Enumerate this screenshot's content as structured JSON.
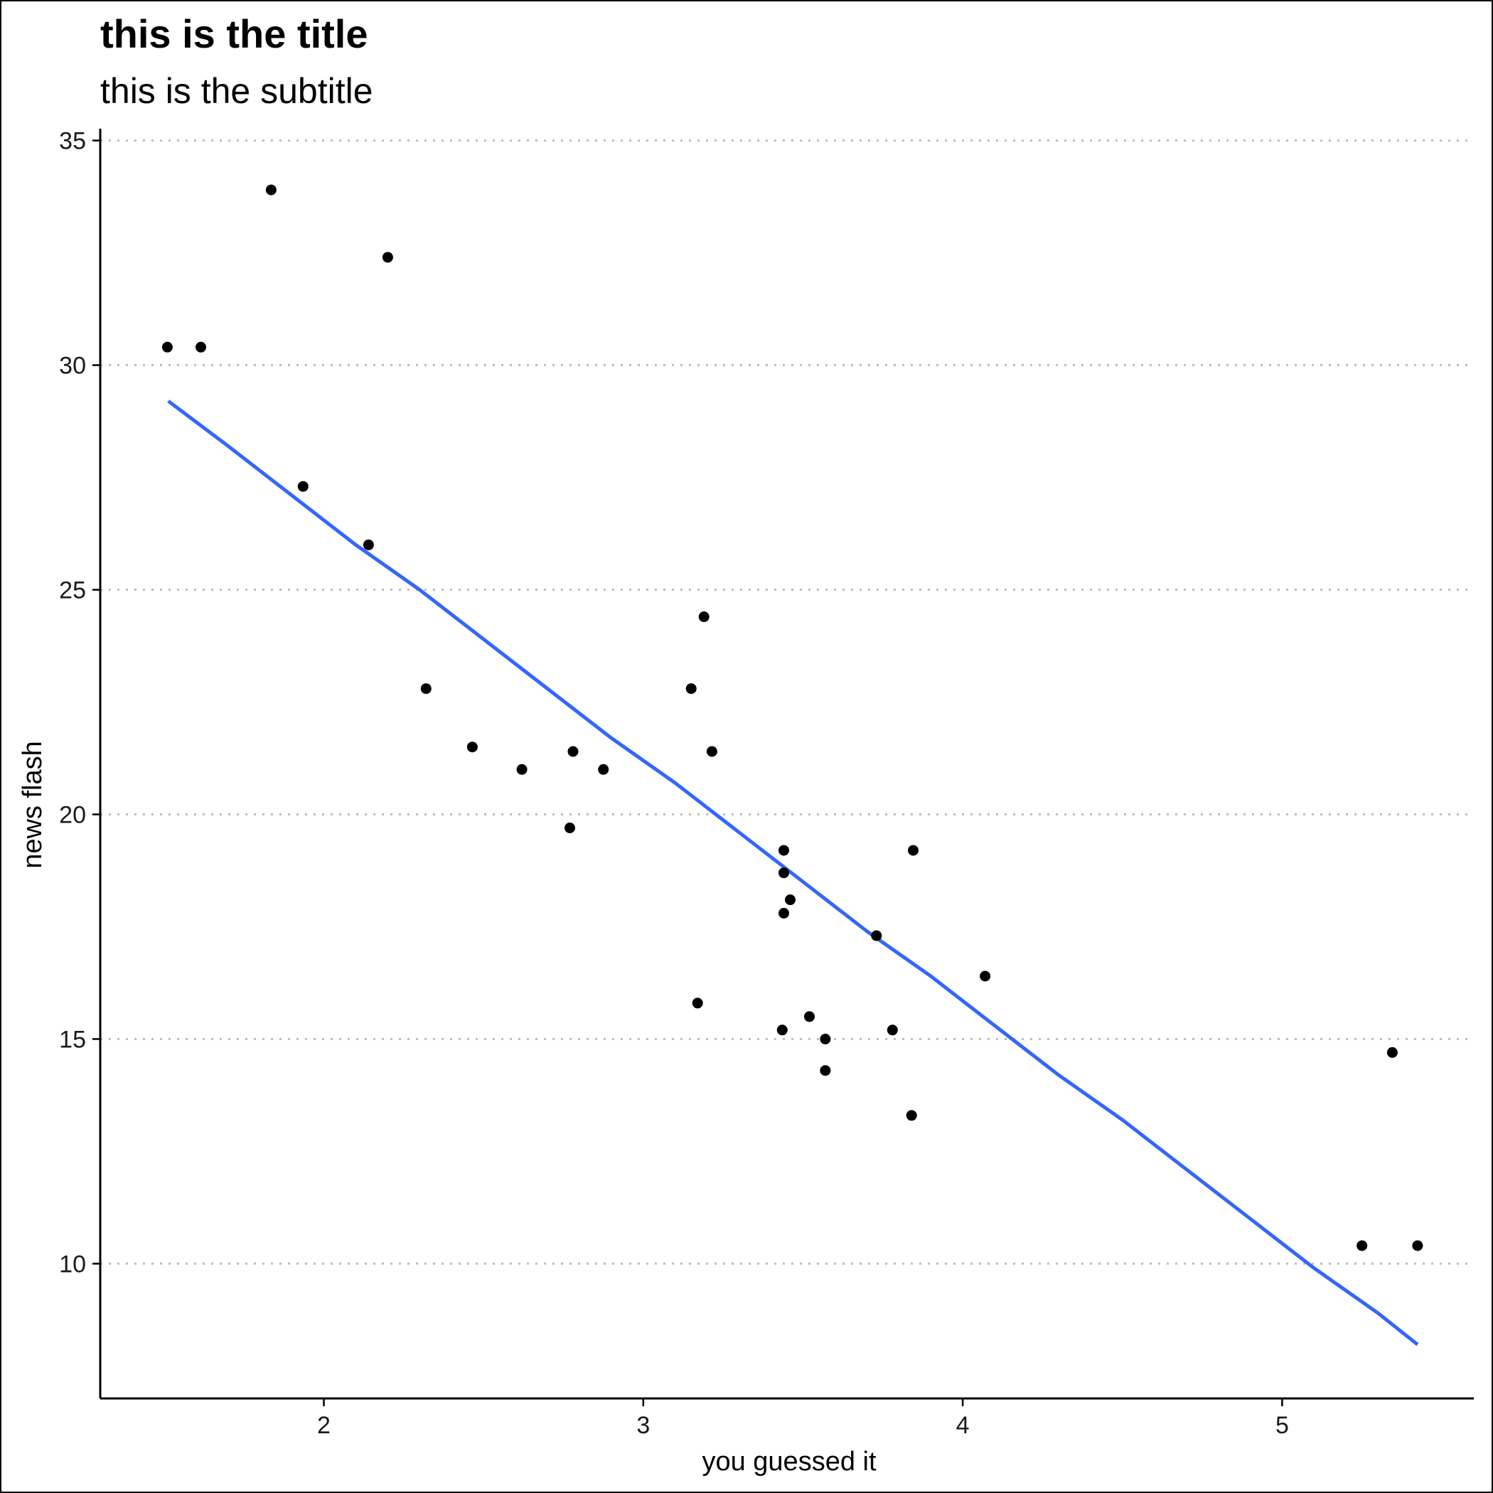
{
  "chart_data": {
    "type": "scatter",
    "title": "this is the title",
    "subtitle": "this is the subtitle",
    "xlabel": "you guessed it",
    "ylabel": "news flash",
    "xlim": [
      1.3,
      5.6
    ],
    "ylim": [
      7.0,
      35.2
    ],
    "x_ticks": [
      2,
      3,
      4,
      5
    ],
    "y_ticks": [
      10,
      15,
      20,
      25,
      30,
      35
    ],
    "grid": "horizontal dotted",
    "point_color": "#000000",
    "line_color": "#3366FF",
    "points": [
      {
        "x": 1.51,
        "y": 30.4
      },
      {
        "x": 1.615,
        "y": 30.4
      },
      {
        "x": 1.835,
        "y": 33.9
      },
      {
        "x": 1.935,
        "y": 27.3
      },
      {
        "x": 2.14,
        "y": 26.0
      },
      {
        "x": 2.2,
        "y": 32.4
      },
      {
        "x": 2.32,
        "y": 22.8
      },
      {
        "x": 2.465,
        "y": 21.5
      },
      {
        "x": 2.62,
        "y": 21.0
      },
      {
        "x": 2.77,
        "y": 19.7
      },
      {
        "x": 2.78,
        "y": 21.4
      },
      {
        "x": 2.875,
        "y": 21.0
      },
      {
        "x": 3.15,
        "y": 22.8
      },
      {
        "x": 3.17,
        "y": 15.8
      },
      {
        "x": 3.19,
        "y": 24.4
      },
      {
        "x": 3.215,
        "y": 21.4
      },
      {
        "x": 3.435,
        "y": 15.2
      },
      {
        "x": 3.44,
        "y": 19.2
      },
      {
        "x": 3.44,
        "y": 18.7
      },
      {
        "x": 3.44,
        "y": 17.8
      },
      {
        "x": 3.46,
        "y": 18.1
      },
      {
        "x": 3.52,
        "y": 15.5
      },
      {
        "x": 3.57,
        "y": 15.0
      },
      {
        "x": 3.57,
        "y": 14.3
      },
      {
        "x": 3.73,
        "y": 17.3
      },
      {
        "x": 3.78,
        "y": 15.2
      },
      {
        "x": 3.84,
        "y": 13.3
      },
      {
        "x": 3.845,
        "y": 19.2
      },
      {
        "x": 4.07,
        "y": 16.4
      },
      {
        "x": 5.25,
        "y": 10.4
      },
      {
        "x": 5.345,
        "y": 14.7
      },
      {
        "x": 5.424,
        "y": 10.4
      }
    ],
    "fit_line": {
      "x": [
        1.513,
        1.7,
        1.9,
        2.1,
        2.3,
        2.5,
        2.7,
        2.9,
        3.1,
        3.3,
        3.5,
        3.7,
        3.9,
        4.1,
        4.3,
        4.5,
        4.7,
        4.9,
        5.1,
        5.3,
        5.424
      ],
      "y": [
        29.2,
        28.2,
        27.1,
        26.0,
        25.0,
        23.9,
        22.8,
        21.7,
        20.7,
        19.6,
        18.5,
        17.4,
        16.4,
        15.3,
        14.2,
        13.2,
        12.1,
        11.0,
        9.9,
        8.9,
        8.2
      ]
    }
  }
}
